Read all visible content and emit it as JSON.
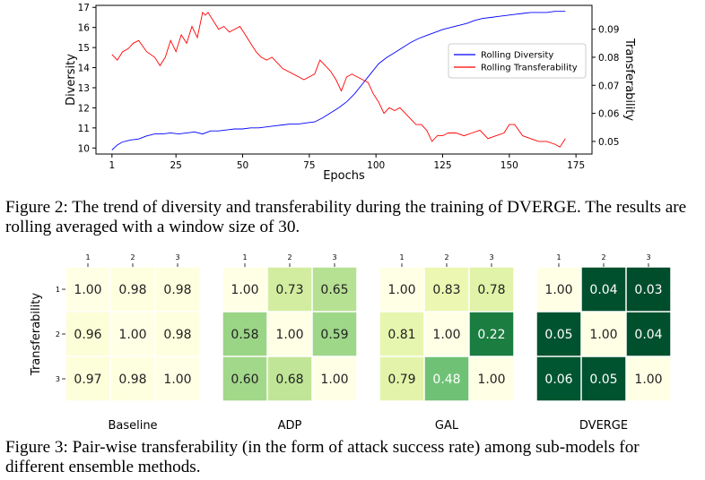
{
  "figure2": {
    "caption": "Figure 2: The trend of diversity and transferability during the training of DVERGE. The results are rolling averaged with a window size of 30.",
    "chart_data": {
      "type": "line",
      "xlabel": "Epochs",
      "ylabel_left": "Diversity",
      "ylabel_right": "Transferability",
      "x_ticks": [
        1,
        25,
        50,
        75,
        100,
        125,
        150,
        175
      ],
      "y_left_ticks": [
        10,
        11,
        12,
        13,
        14,
        15,
        16,
        17
      ],
      "y_right_ticks": [
        "0.05",
        "0.06",
        "0.07",
        "0.08",
        "0.09"
      ],
      "xlim": [
        -5,
        181
      ],
      "ylim_left": [
        9.7,
        17.1
      ],
      "ylim_right": [
        0.0455,
        0.0985
      ],
      "grid": false,
      "legend_position": "center-right",
      "series": [
        {
          "name": "Rolling Diversity",
          "axis": "left",
          "color": "#0000ff",
          "x": [
            1,
            3,
            5,
            8,
            11,
            14,
            17,
            20,
            23,
            26,
            29,
            32,
            35,
            38,
            41,
            44,
            47,
            50,
            53,
            56,
            59,
            62,
            65,
            68,
            71,
            74,
            77,
            80,
            83,
            86,
            89,
            92,
            95,
            98,
            101,
            104,
            107,
            110,
            113,
            116,
            119,
            122,
            125,
            128,
            131,
            134,
            137,
            140,
            143,
            146,
            149,
            152,
            155,
            158,
            161,
            164,
            167,
            171
          ],
          "values": [
            9.9,
            10.15,
            10.3,
            10.4,
            10.45,
            10.6,
            10.7,
            10.7,
            10.75,
            10.7,
            10.75,
            10.8,
            10.7,
            10.85,
            10.85,
            10.9,
            10.95,
            10.95,
            11.0,
            11.0,
            11.05,
            11.1,
            11.15,
            11.2,
            11.2,
            11.25,
            11.3,
            11.5,
            11.75,
            12.0,
            12.3,
            12.7,
            13.2,
            13.7,
            14.2,
            14.5,
            14.75,
            15.0,
            15.25,
            15.45,
            15.6,
            15.75,
            15.9,
            16.0,
            16.1,
            16.2,
            16.35,
            16.45,
            16.5,
            16.55,
            16.6,
            16.65,
            16.7,
            16.75,
            16.75,
            16.75,
            16.8,
            16.8
          ]
        },
        {
          "name": "Rolling Transferability",
          "axis": "right",
          "color": "#ff0000",
          "x": [
            1,
            3,
            5,
            7,
            9,
            11,
            14,
            17,
            19,
            21,
            23,
            25,
            27,
            29,
            31,
            33,
            35,
            36,
            37,
            39,
            41,
            43,
            45,
            47,
            49,
            51,
            53,
            55,
            57,
            59,
            61,
            63,
            65,
            67,
            69,
            71,
            73,
            75,
            77,
            79,
            81,
            83,
            85,
            87,
            89,
            91,
            93,
            95,
            97,
            99,
            101,
            103,
            105,
            107,
            109,
            111,
            113,
            115,
            117,
            119,
            121,
            123,
            125,
            127,
            130,
            133,
            136,
            139,
            142,
            145,
            148,
            150,
            152,
            155,
            158,
            161,
            164,
            167,
            169,
            171
          ],
          "values": [
            0.081,
            0.079,
            0.082,
            0.083,
            0.085,
            0.086,
            0.082,
            0.08,
            0.077,
            0.08,
            0.086,
            0.082,
            0.088,
            0.085,
            0.091,
            0.087,
            0.096,
            0.095,
            0.096,
            0.093,
            0.09,
            0.091,
            0.089,
            0.09,
            0.091,
            0.088,
            0.085,
            0.082,
            0.08,
            0.079,
            0.08,
            0.078,
            0.076,
            0.075,
            0.074,
            0.073,
            0.072,
            0.073,
            0.074,
            0.079,
            0.077,
            0.075,
            0.072,
            0.068,
            0.073,
            0.074,
            0.073,
            0.072,
            0.071,
            0.067,
            0.064,
            0.06,
            0.062,
            0.061,
            0.062,
            0.06,
            0.058,
            0.056,
            0.056,
            0.054,
            0.05,
            0.052,
            0.052,
            0.053,
            0.053,
            0.052,
            0.053,
            0.054,
            0.051,
            0.052,
            0.053,
            0.056,
            0.056,
            0.052,
            0.051,
            0.05,
            0.05,
            0.049,
            0.048,
            0.051
          ]
        }
      ]
    }
  },
  "figure3": {
    "caption": "Figure 3: Pair-wise transferability (in the form of attack success rate) among sub-models for different ensemble methods.",
    "ylabel": "Transferability",
    "chart_data": [
      {
        "type": "heatmap",
        "xlabel": "Baseline",
        "col_labels": [
          "1",
          "2",
          "3"
        ],
        "row_labels": [
          "1",
          "2",
          "3"
        ],
        "values": [
          [
            "1.00",
            "0.98",
            "0.98"
          ],
          [
            "0.96",
            "1.00",
            "0.98"
          ],
          [
            "0.97",
            "0.98",
            "1.00"
          ]
        ]
      },
      {
        "type": "heatmap",
        "xlabel": "ADP",
        "col_labels": [
          "1",
          "2",
          "3"
        ],
        "row_labels": [
          "1",
          "2",
          "3"
        ],
        "values": [
          [
            "1.00",
            "0.73",
            "0.65"
          ],
          [
            "0.58",
            "1.00",
            "0.59"
          ],
          [
            "0.60",
            "0.68",
            "1.00"
          ]
        ]
      },
      {
        "type": "heatmap",
        "xlabel": "GAL",
        "col_labels": [
          "1",
          "2",
          "3"
        ],
        "row_labels": [
          "1",
          "2",
          "3"
        ],
        "values": [
          [
            "1.00",
            "0.83",
            "0.78"
          ],
          [
            "0.81",
            "1.00",
            "0.22"
          ],
          [
            "0.79",
            "0.48",
            "1.00"
          ]
        ]
      },
      {
        "type": "heatmap",
        "xlabel": "DVERGE",
        "col_labels": [
          "1",
          "2",
          "3"
        ],
        "row_labels": [
          "1",
          "2",
          "3"
        ],
        "values": [
          [
            "1.00",
            "0.04",
            "0.03"
          ],
          [
            "0.05",
            "1.00",
            "0.04"
          ],
          [
            "0.06",
            "0.05",
            "1.00"
          ]
        ]
      }
    ]
  }
}
